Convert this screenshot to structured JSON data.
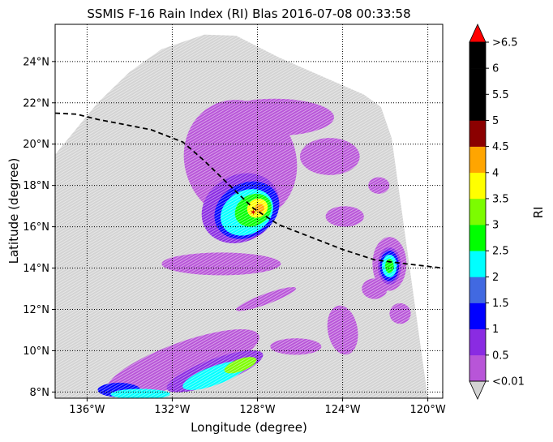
{
  "title": "SSMIS F-16 Rain Index (RI) Blas 2016-07-08 00:33:58",
  "xlabel": "Longitude (degree)",
  "ylabel": "Latitude (degree)",
  "colorbar": {
    "label": "RI",
    "tick_labels": [
      "<0.01",
      "0.5",
      "1",
      "1.5",
      "2",
      "2.5",
      "3",
      "3.5",
      "4",
      "4.5",
      "5",
      "5.5",
      "6",
      ">6.5"
    ],
    "colors": [
      "#b855d8",
      "#8a2be2",
      "#0000ff",
      "#4169e1",
      "#00ffff",
      "#00ff00",
      "#7cfc00",
      "#ffff00",
      "#ffa500",
      "#8b0000",
      "#000000",
      "#000000",
      "#000000"
    ],
    "over_color": "#ff0000",
    "under_color": "#d3d3d3"
  },
  "map_data": {
    "lon_range": [
      -137.5,
      -119.3
    ],
    "lat_range": [
      7.7,
      25.8
    ],
    "lon_ticks": [
      {
        "value": -136,
        "label": "136°W"
      },
      {
        "value": -132,
        "label": "132°W"
      },
      {
        "value": -128,
        "label": "128°W"
      },
      {
        "value": -124,
        "label": "124°W"
      },
      {
        "value": -120,
        "label": "120°W"
      }
    ],
    "lat_ticks": [
      {
        "value": 8,
        "label": "8°N"
      },
      {
        "value": 10,
        "label": "10°N"
      },
      {
        "value": 12,
        "label": "12°N"
      },
      {
        "value": 14,
        "label": "14°N"
      },
      {
        "value": 16,
        "label": "16°N"
      },
      {
        "value": 18,
        "label": "18°N"
      },
      {
        "value": 20,
        "label": "20°N"
      },
      {
        "value": 22,
        "label": "22°N"
      },
      {
        "value": 24,
        "label": "24°N"
      }
    ],
    "grid": true,
    "swath_color": "#d3d3d3",
    "swath_polygon": [
      [
        -137.5,
        7.7
      ],
      [
        -137.5,
        19.5
      ],
      [
        -135.5,
        22.0
      ],
      [
        -134.0,
        23.5
      ],
      [
        -132.5,
        24.6
      ],
      [
        -130.5,
        25.3
      ],
      [
        -129.0,
        25.25
      ],
      [
        -127.0,
        24.2
      ],
      [
        -125.0,
        23.3
      ],
      [
        -123.0,
        22.4
      ],
      [
        -122.2,
        21.8
      ],
      [
        -121.7,
        20.3
      ],
      [
        -120.0,
        7.7
      ]
    ],
    "storm_center": [
      -128.2,
      16.7
    ],
    "track": [
      [
        -137.5,
        21.5
      ],
      [
        -136.5,
        21.45
      ],
      [
        -135.5,
        21.2
      ],
      [
        -134.5,
        21.0
      ],
      [
        -133.0,
        20.7
      ],
      [
        -131.5,
        20.1
      ],
      [
        -130.5,
        19.2
      ],
      [
        -129.5,
        18.2
      ],
      [
        -128.2,
        16.9
      ],
      [
        -127.0,
        16.1
      ],
      [
        -125.5,
        15.5
      ],
      [
        -124.0,
        14.9
      ],
      [
        -122.5,
        14.4
      ],
      [
        -121.0,
        14.2
      ],
      [
        -119.3,
        14.0
      ]
    ],
    "rain_regions": [
      {
        "lon": -128.8,
        "lat": 19.2,
        "rx": 2.6,
        "ry": 3.0,
        "rot": 25,
        "level": 0
      },
      {
        "lon": -127.2,
        "lat": 21.3,
        "rx": 2.8,
        "ry": 0.9,
        "rot": 0,
        "level": 0
      },
      {
        "lon": -124.6,
        "lat": 19.4,
        "rx": 1.4,
        "ry": 0.9,
        "rot": 0,
        "level": 0
      },
      {
        "lon": -129.7,
        "lat": 14.2,
        "rx": 2.8,
        "ry": 0.55,
        "rot": 0,
        "level": 0
      },
      {
        "lon": -123.9,
        "lat": 16.5,
        "rx": 0.9,
        "ry": 0.5,
        "rot": 0,
        "level": 0
      },
      {
        "lon": -122.3,
        "lat": 18.0,
        "rx": 0.5,
        "ry": 0.4,
        "rot": 0,
        "level": 0
      },
      {
        "lon": -127.6,
        "lat": 12.5,
        "rx": 1.5,
        "ry": 0.25,
        "rot": 20,
        "level": 0
      },
      {
        "lon": -124.0,
        "lat": 11.0,
        "rx": 0.7,
        "ry": 1.2,
        "rot": 10,
        "level": 0
      },
      {
        "lon": -126.2,
        "lat": 10.2,
        "rx": 1.2,
        "ry": 0.4,
        "rot": 0,
        "level": 0
      },
      {
        "lon": -122.5,
        "lat": 13.0,
        "rx": 0.6,
        "ry": 0.5,
        "rot": 0,
        "level": 0
      },
      {
        "lon": -121.8,
        "lat": 14.2,
        "rx": 0.8,
        "ry": 1.3,
        "rot": 0,
        "level": 0
      },
      {
        "lon": -121.3,
        "lat": 11.8,
        "rx": 0.5,
        "ry": 0.5,
        "rot": 0,
        "level": 0
      },
      {
        "lon": -131.5,
        "lat": 9.4,
        "rx": 3.8,
        "ry": 1.0,
        "rot": 20,
        "level": 0
      },
      {
        "lon": -128.8,
        "lat": 16.9,
        "rx": 1.9,
        "ry": 1.6,
        "rot": 30,
        "level": 1
      },
      {
        "lon": -130.0,
        "lat": 9.0,
        "rx": 2.4,
        "ry": 0.6,
        "rot": 20,
        "level": 1
      },
      {
        "lon": -121.8,
        "lat": 14.1,
        "rx": 0.55,
        "ry": 0.9,
        "rot": 0,
        "level": 1
      },
      {
        "lon": -128.5,
        "lat": 16.8,
        "rx": 1.6,
        "ry": 1.3,
        "rot": 30,
        "level": 2
      },
      {
        "lon": -121.8,
        "lat": 14.1,
        "rx": 0.45,
        "ry": 0.75,
        "rot": 0,
        "level": 2
      },
      {
        "lon": -134.5,
        "lat": 8.1,
        "rx": 1.0,
        "ry": 0.35,
        "rot": 0,
        "level": 2
      },
      {
        "lon": -128.5,
        "lat": 16.7,
        "rx": 1.3,
        "ry": 1.05,
        "rot": 30,
        "level": 4
      },
      {
        "lon": -121.8,
        "lat": 14.1,
        "rx": 0.35,
        "ry": 0.55,
        "rot": 0,
        "level": 4
      },
      {
        "lon": -130.0,
        "lat": 8.8,
        "rx": 1.6,
        "ry": 0.45,
        "rot": 20,
        "level": 4
      },
      {
        "lon": -133.5,
        "lat": 7.9,
        "rx": 1.4,
        "ry": 0.25,
        "rot": 0,
        "level": 4
      },
      {
        "lon": -128.2,
        "lat": 16.8,
        "rx": 0.9,
        "ry": 0.75,
        "rot": 30,
        "level": 5
      },
      {
        "lon": -121.8,
        "lat": 14.1,
        "rx": 0.2,
        "ry": 0.35,
        "rot": 0,
        "level": 5
      },
      {
        "lon": -128.8,
        "lat": 9.3,
        "rx": 0.8,
        "ry": 0.3,
        "rot": 20,
        "level": 6
      },
      {
        "lon": -128.0,
        "lat": 16.9,
        "rx": 0.5,
        "ry": 0.45,
        "rot": 30,
        "level": 7
      },
      {
        "lon": -127.9,
        "lat": 16.9,
        "rx": 0.22,
        "ry": 0.22,
        "rot": 0,
        "level": 8
      }
    ]
  }
}
